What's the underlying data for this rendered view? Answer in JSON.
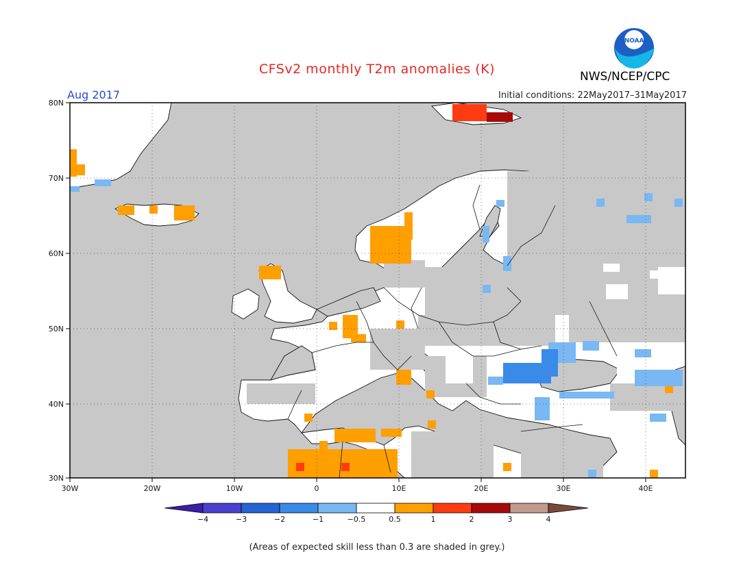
{
  "header": {
    "title": "CFSv2 monthly T2m anomalies (K)",
    "agency": "NWS/NCEP/CPC",
    "logo_text": "NOAA",
    "month": "Aug 2017",
    "initial_conditions": "Initial conditions: 22May2017–31May2017"
  },
  "map": {
    "lon_range": [
      -30,
      45
    ],
    "lat_range": [
      30,
      80
    ],
    "lat_ticks": [
      "30N",
      "40N",
      "50N",
      "60N",
      "70N",
      "80N"
    ],
    "lon_ticks": [
      "30W",
      "20W",
      "10W",
      "0",
      "10E",
      "20E",
      "30E",
      "40E"
    ],
    "grid": true,
    "ocean_color": "#c8c8c8",
    "land_color": "#ffffff",
    "border_color": "#111111"
  },
  "colorbar": {
    "labels": [
      "−4",
      "−3",
      "−2",
      "−1",
      "−0.5",
      "0.5",
      "1",
      "2",
      "3",
      "4"
    ],
    "colors": [
      "#3c1fa6",
      "#4a40cf",
      "#2464d4",
      "#3a8ae8",
      "#79b8f2",
      "#ffffff",
      "#ff9f00",
      "#ff3c10",
      "#a80a0a",
      "#c29a8e",
      "#7a4a38"
    ]
  },
  "footnote": "(Areas of expected skill less than 0.3 are shaded in grey.)"
}
